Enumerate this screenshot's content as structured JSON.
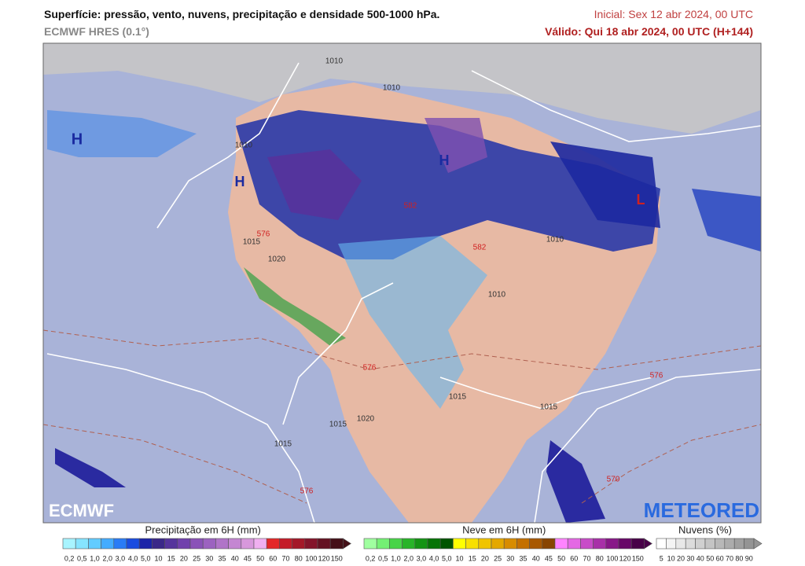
{
  "header": {
    "title": "Superfície: pressão, vento, nuvens, precipitação e densidade 500-1000 hPa.",
    "model": "ECMWF HRES (0.1°)",
    "initial": "Inicial: Sex 12 abr 2024, 00 UTC",
    "valid": "Válido: Qui 18 abr 2024, 00 UTC (H+144)"
  },
  "map": {
    "labels": [
      "H",
      "H",
      "H",
      "L",
      "1010",
      "1010",
      "1010",
      "1015",
      "1020",
      "576",
      "582",
      "582",
      "1010",
      "1010",
      "1015",
      "1015",
      "1020",
      "1015",
      "576",
      "576",
      "570",
      "576",
      "1015"
    ],
    "logos": [
      "ECMWF",
      "METEORED"
    ]
  },
  "legends": [
    {
      "title": "Precipitação em 6H (mm)",
      "labels": [
        "0,2",
        "0,5",
        "1,0",
        "2,0",
        "3,0",
        "4,0",
        "5,0",
        "10",
        "15",
        "20",
        "25",
        "30",
        "35",
        "40",
        "45",
        "50",
        "60",
        "70",
        "80",
        "100",
        "120",
        "150"
      ],
      "colors": [
        "#a8f4ff",
        "#86e4ff",
        "#62ccff",
        "#44acff",
        "#2a7cf6",
        "#1a4ce0",
        "#1c24a8",
        "#3a2888",
        "#55349c",
        "#7040ac",
        "#8a52b8",
        "#9c62c0",
        "#b074c8",
        "#c486d2",
        "#d898dc",
        "#f0b0f0",
        "#e42828",
        "#c41c28",
        "#a41828",
        "#84142a",
        "#641222",
        "#441018"
      ]
    },
    {
      "title": "Neve em 6H (mm)",
      "labels": [
        "0,2",
        "0,5",
        "1,0",
        "2,0",
        "3,0",
        "4,0",
        "5,0",
        "10",
        "15",
        "20",
        "25",
        "30",
        "35",
        "40",
        "45",
        "50",
        "60",
        "70",
        "80",
        "100",
        "120",
        "150"
      ],
      "colors": [
        "#a0ffa0",
        "#74f074",
        "#48d448",
        "#28b428",
        "#149414",
        "#067406",
        "#005400",
        "#ffff00",
        "#f8e000",
        "#f0c400",
        "#e4a800",
        "#d88c00",
        "#c47000",
        "#a85800",
        "#884400",
        "#ff84ff",
        "#e468e4",
        "#c84cc8",
        "#a830a8",
        "#881888",
        "#680868",
        "#480048"
      ]
    },
    {
      "title": "Nuvens (%)",
      "labels": [
        "5",
        "10",
        "20",
        "30",
        "40",
        "50",
        "60",
        "70",
        "80",
        "90"
      ],
      "colors": [
        "#ffffff",
        "#f4f4f4",
        "#e8e8e8",
        "#dcdcdc",
        "#d0d0d0",
        "#c4c4c4",
        "#b8b8b8",
        "#acacac",
        "#a0a0a0",
        "#949494"
      ]
    }
  ]
}
